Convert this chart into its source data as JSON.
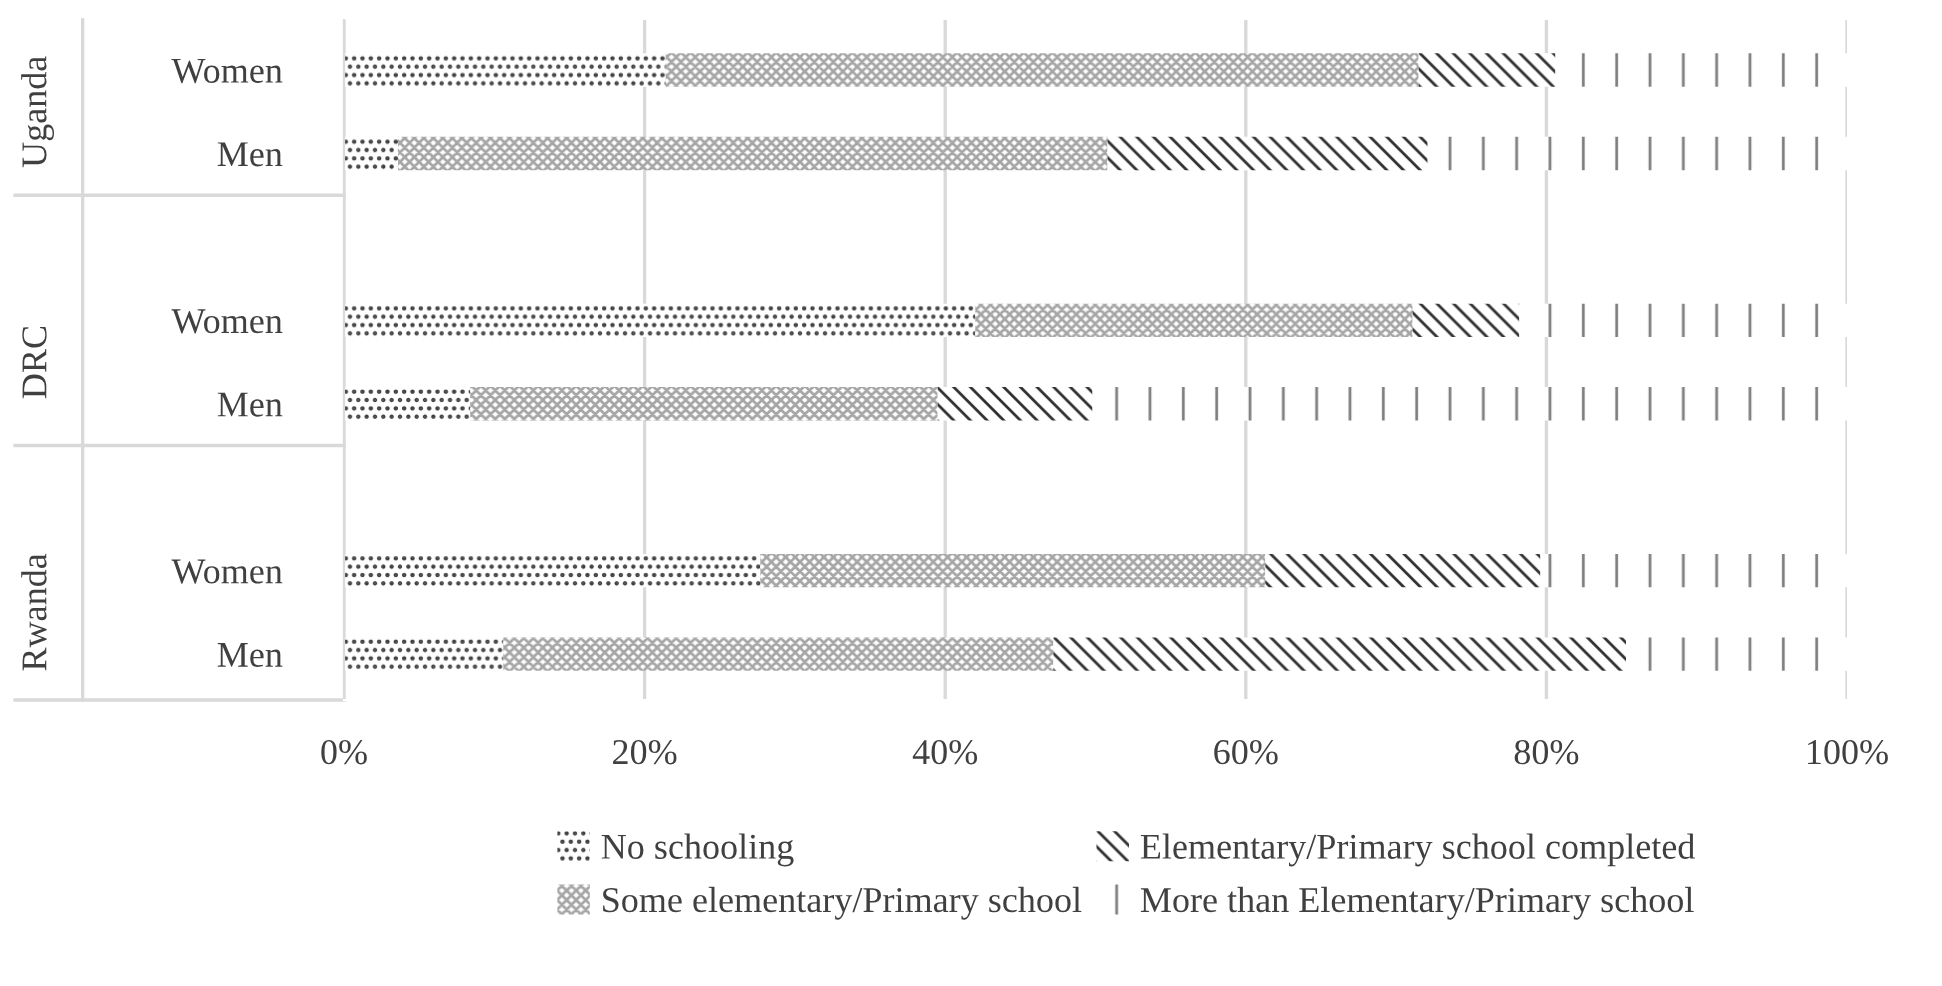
{
  "chart_data": {
    "type": "bar",
    "orientation": "horizontal",
    "stacked": true,
    "categories": [
      "Women",
      "Men",
      "Women",
      "Men",
      "Women",
      "Men"
    ],
    "series": [
      {
        "name": "No schooling",
        "color": "#404040",
        "values": [
          21.4,
          3.6,
          42.0,
          8.4,
          27.7,
          10.6
        ]
      },
      {
        "name": "Some elementary/Primary school",
        "color": "#a6a6a6",
        "values": [
          50.1,
          47.2,
          29.1,
          31.1,
          33.6,
          36.6
        ]
      },
      {
        "name": "Elementary/Primary school completed",
        "color": "#303030",
        "values": [
          9.1,
          21.3,
          7.1,
          10.3,
          18.3,
          38.1
        ]
      },
      {
        "name": "More than Elementary/Primary school",
        "color": "#808080",
        "values": [
          19.4,
          27.9,
          21.8,
          50.2,
          20.4,
          14.7
        ]
      }
    ],
    "annotations": [
      "Uganda",
      "DRC",
      "Rwanda"
    ],
    "xlim": [
      0,
      100
    ],
    "xticks": [
      {
        "value": 0,
        "label": "0%"
      },
      {
        "value": 20,
        "label": "20%"
      },
      {
        "value": 40,
        "label": "40%"
      },
      {
        "value": 60,
        "label": "60%"
      },
      {
        "value": 80,
        "label": "80%"
      },
      {
        "value": 100,
        "label": "100%"
      }
    ],
    "grid": "x",
    "legend": "bottom"
  }
}
